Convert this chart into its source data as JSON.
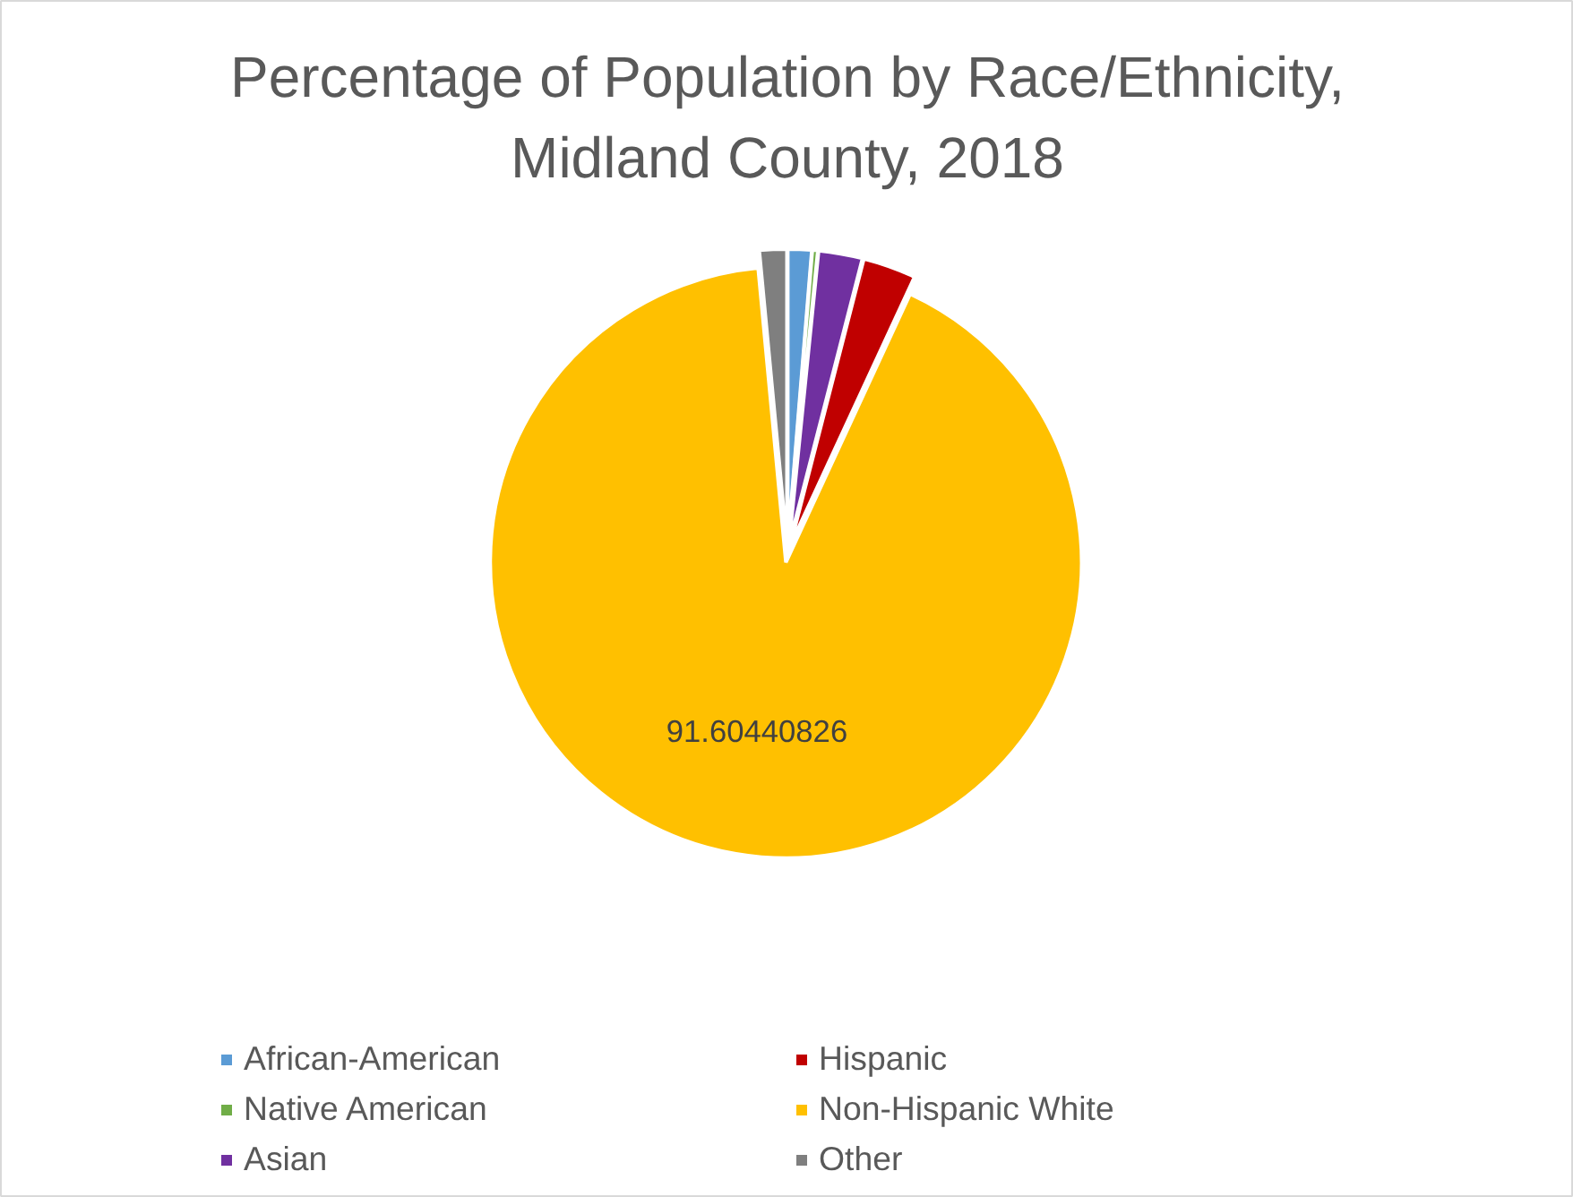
{
  "chart_data": {
    "type": "pie",
    "title": "Percentage of Population by Race/Ethnicity, Midland County, 2018",
    "categories": [
      "African-American",
      "Native American",
      "Asian",
      "Hispanic",
      "Non-Hispanic White",
      "Other"
    ],
    "values": [
      1.3,
      0.3,
      2.4,
      2.9,
      91.60440826,
      1.49559174
    ],
    "colors": [
      "#5b9bd5",
      "#70ad47",
      "#7030a0",
      "#c00000",
      "#ffc000",
      "#7f7f7f"
    ],
    "value_labels": [
      null,
      null,
      null,
      null,
      "91.60440826",
      null
    ],
    "legend": "bottom"
  }
}
